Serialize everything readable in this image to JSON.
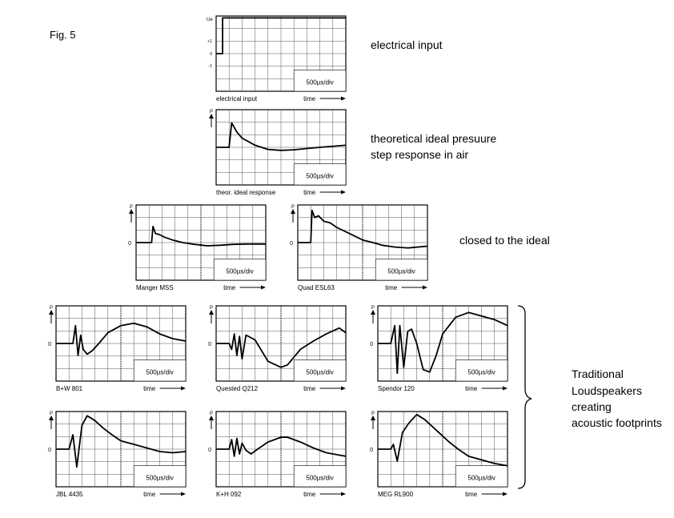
{
  "figure_label": "Fig. 5",
  "common": {
    "axis_p": "P",
    "axis_zero": "0",
    "time_label": "time",
    "scale_label": "500µs/div"
  },
  "top_axis": {
    "y_label": "Ue",
    "ticks": [
      "+1",
      "0",
      "-1"
    ]
  },
  "annotations": {
    "electrical_input": "electrical input",
    "theoretical_line1": "theoretical ideal presuure",
    "theoretical_line2": "step response in air",
    "closed": "closed to the ideal",
    "traditional": [
      "Traditional",
      "Loudspeakers",
      "creating",
      "acoustic footprints"
    ]
  },
  "colors": {
    "ink": "#000000",
    "grid": "#555555",
    "paper": "#ffffff"
  },
  "chart_data": [
    {
      "type": "line",
      "name": "electrical input",
      "x": [
        0,
        0.5,
        0.5,
        10
      ],
      "y": [
        0,
        0,
        1,
        1
      ]
    },
    {
      "type": "line",
      "name": "theor. ideal response",
      "x": [
        0,
        1,
        1.2,
        1.6,
        2,
        3,
        4,
        5,
        6,
        7,
        8,
        10
      ],
      "y": [
        0,
        0,
        1.2,
        0.75,
        0.45,
        0.1,
        -0.1,
        -0.15,
        -0.12,
        -0.06,
        0,
        0.1
      ]
    },
    {
      "type": "line",
      "name": "Manger MSS",
      "x": [
        0,
        1.2,
        1.3,
        1.5,
        1.8,
        2.2,
        2.8,
        3.6,
        4.5,
        5.5,
        6.5,
        7.5,
        8.5,
        10
      ],
      "y": [
        0,
        0,
        0.9,
        0.5,
        0.45,
        0.3,
        0.15,
        0,
        -0.1,
        -0.18,
        -0.15,
        -0.1,
        -0.08,
        -0.08
      ]
    },
    {
      "type": "line",
      "name": "Quad ESL63",
      "x": [
        0,
        1,
        1.1,
        1.3,
        1.6,
        2,
        2.5,
        3,
        4,
        5,
        5.8,
        6.5,
        7.5,
        8.5,
        10
      ],
      "y": [
        0,
        0,
        1.8,
        1.4,
        1.5,
        1.2,
        1.1,
        0.85,
        0.5,
        0.15,
        0,
        -0.15,
        -0.25,
        -0.3,
        -0.2
      ]
    },
    {
      "type": "line",
      "name": "B+W 801",
      "x": [
        0,
        1.3,
        1.5,
        1.7,
        1.9,
        2.1,
        2.4,
        2.8,
        3.3,
        4,
        5,
        6,
        7,
        8,
        9,
        10
      ],
      "y": [
        0,
        0,
        1.5,
        -1,
        0.7,
        -0.5,
        -0.9,
        -0.6,
        0,
        0.9,
        1.5,
        1.7,
        1.4,
        0.8,
        0.4,
        0.2
      ]
    },
    {
      "type": "line",
      "name": "Quested Q212",
      "x": [
        0,
        1,
        1.2,
        1.4,
        1.6,
        1.8,
        2,
        2.3,
        3,
        4,
        5,
        5.5,
        6.5,
        7.5,
        8.5,
        9.5,
        10
      ],
      "y": [
        0,
        0,
        -0.5,
        0.8,
        -1,
        0.6,
        -1.3,
        0.7,
        0.3,
        -1.5,
        -2,
        -1.8,
        -0.5,
        0.2,
        0.8,
        1.3,
        0.9
      ]
    },
    {
      "type": "line",
      "name": "Spendor 120",
      "x": [
        0,
        1,
        1.3,
        1.5,
        1.7,
        2,
        2.3,
        2.6,
        3,
        3.5,
        4,
        4.5,
        5,
        6,
        7,
        8,
        9,
        10
      ],
      "y": [
        0,
        0,
        1.5,
        -2.5,
        1.5,
        -2,
        1,
        1.2,
        0,
        -2.2,
        -2.4,
        -1,
        0.8,
        2.2,
        2.6,
        2.3,
        2,
        1.5
      ]
    },
    {
      "type": "line",
      "name": "JBL 4435",
      "x": [
        0,
        1,
        1.3,
        1.6,
        2,
        2.4,
        3,
        3.6,
        4.2,
        5,
        6,
        7,
        8,
        9,
        10
      ],
      "y": [
        0,
        0,
        1.2,
        -1.5,
        2,
        2.8,
        2.4,
        1.8,
        1.3,
        0.7,
        0.4,
        0.1,
        -0.2,
        -0.3,
        -0.2
      ]
    },
    {
      "type": "line",
      "name": "K+H 092",
      "x": [
        0,
        1,
        1.2,
        1.4,
        1.6,
        1.8,
        2,
        2.3,
        2.7,
        3.2,
        4,
        5,
        5.5,
        6.5,
        7.5,
        8.5,
        10
      ],
      "y": [
        0,
        0,
        0.8,
        -0.6,
        0.9,
        -0.4,
        0.5,
        -0.1,
        -0.4,
        0,
        0.6,
        1,
        1,
        0.6,
        0.1,
        -0.3,
        -0.6
      ]
    },
    {
      "type": "line",
      "name": "MEG RL900",
      "x": [
        0,
        1,
        1.2,
        1.5,
        1.9,
        2.4,
        3,
        3.6,
        4.2,
        4.8,
        5.5,
        6.2,
        7,
        8,
        9,
        10
      ],
      "y": [
        0,
        0,
        0.4,
        -1,
        1.4,
        2.2,
        2.9,
        2.5,
        1.9,
        1.3,
        0.6,
        0,
        -0.6,
        -0.9,
        -1.2,
        -1.4
      ]
    }
  ],
  "panels": [
    {
      "label": "electrical input",
      "kind": "input"
    },
    {
      "label": "theor. ideal response",
      "kind": "ideal"
    },
    {
      "label": "Manger MSS"
    },
    {
      "label": "Quad ESL63"
    },
    {
      "label": "B+W 801"
    },
    {
      "label": "Quested Q212"
    },
    {
      "label": "Spendor 120"
    },
    {
      "label": "JBL 4435"
    },
    {
      "label": "K+H 092"
    },
    {
      "label": "MEG RL900"
    }
  ]
}
